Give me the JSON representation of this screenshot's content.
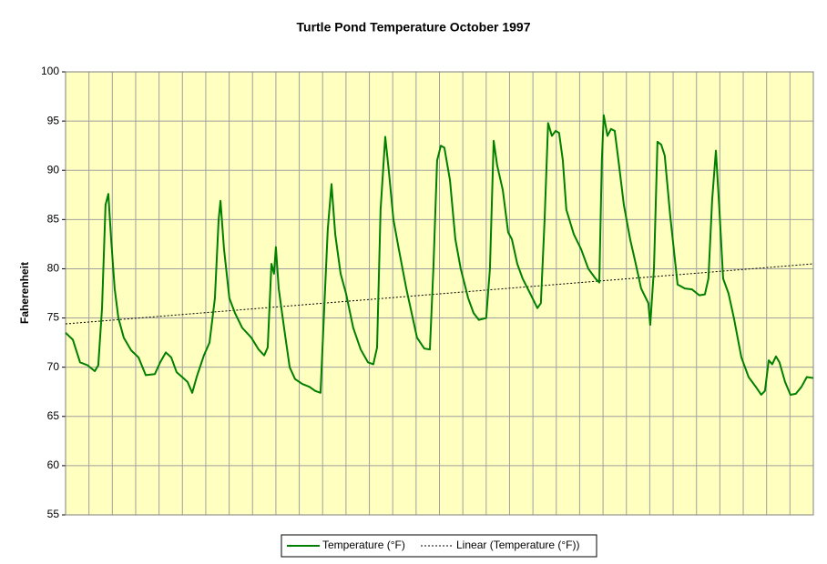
{
  "chart_data": {
    "type": "line",
    "title": "Turtle Pond Temperature October 1997",
    "y_label": "Faherenheit",
    "x": [
      0,
      0.31,
      0.62,
      0.94,
      1.25,
      1.4,
      1.56,
      1.71,
      1.83,
      1.95,
      2.1,
      2.26,
      2.49,
      2.81,
      3.12,
      3.43,
      3.82,
      4.05,
      4.29,
      4.52,
      4.75,
      4.99,
      5.22,
      5.42,
      5.61,
      5.92,
      6.16,
      6.39,
      6.55,
      6.63,
      6.78,
      7.01,
      7.25,
      7.56,
      7.95,
      8.26,
      8.5,
      8.65,
      8.81,
      8.92,
      9.0,
      9.12,
      9.35,
      9.59,
      9.82,
      10.13,
      10.44,
      10.68,
      10.91,
      11.07,
      11.22,
      11.38,
      11.54,
      11.77,
      12.0,
      12.31,
      12.63,
      12.94,
      13.17,
      13.33,
      13.48,
      13.68,
      13.83,
      14.03,
      14.26,
      14.58,
      14.81,
      15.04,
      15.35,
      15.59,
      15.74,
      15.9,
      16.06,
      16.21,
      16.45,
      16.68,
      16.91,
      17.23,
      17.46,
      17.69,
      18.0,
      18.16,
      18.32,
      18.47,
      18.71,
      18.94,
      19.1,
      19.33,
      19.56,
      19.88,
      20.19,
      20.34,
      20.5,
      20.65,
      20.81,
      20.97,
      21.12,
      21.28,
      21.43,
      21.75,
      22.06,
      22.37,
      22.68,
      22.84,
      22.95,
      23.03,
      23.19,
      23.34,
      23.5,
      23.66,
      23.89,
      24.16,
      24.4,
      24.63,
      24.94,
      25.02,
      25.18,
      25.33,
      25.49,
      25.64,
      25.87,
      26.19,
      26.5,
      26.81,
      27.12,
      27.36,
      27.51,
      27.67,
      27.83,
      27.98,
      28.14,
      28.37,
      28.6,
      28.92,
      29.23,
      29.54,
      29.77,
      29.93,
      30.09,
      30.24,
      30.4,
      30.55,
      30.79,
      31.02,
      31.25,
      31.49,
      31.72,
      32.0
    ],
    "series": [
      {
        "name": "Temperature  (°F)",
        "color": "#007f00",
        "values": [
          73.5,
          72.8,
          70.5,
          70.2,
          69.6,
          70.2,
          76,
          86.5,
          87.6,
          83,
          78,
          75,
          73,
          71.7,
          71,
          69.2,
          69.3,
          70.5,
          71.5,
          71,
          69.5,
          69,
          68.5,
          67.4,
          69,
          71.2,
          72.5,
          77,
          85,
          86.9,
          82,
          77,
          75.5,
          74,
          73,
          71.8,
          71.2,
          72,
          80.5,
          79.5,
          82.2,
          78,
          74,
          70,
          68.8,
          68.3,
          68,
          67.6,
          67.4,
          76,
          84,
          88.6,
          83.5,
          79.5,
          77.5,
          74,
          71.8,
          70.5,
          70.3,
          72,
          86,
          93.4,
          90,
          85,
          82,
          78,
          75.5,
          73,
          71.9,
          71.8,
          80,
          91,
          92.5,
          92.3,
          89,
          83,
          80,
          77,
          75.5,
          74.8,
          75,
          80,
          93,
          90.5,
          88,
          83.7,
          83,
          80.5,
          79,
          77.5,
          76,
          76.5,
          85,
          94.8,
          93.5,
          94,
          93.8,
          91,
          86,
          83.5,
          82,
          80,
          79,
          78.6,
          91,
          95.6,
          93.5,
          94.2,
          94,
          91,
          86.5,
          83,
          80.5,
          78,
          76.5,
          74.3,
          80,
          92.9,
          92.6,
          91.5,
          85.5,
          78.4,
          78,
          77.9,
          77.3,
          77.4,
          79,
          87,
          92,
          86,
          79,
          77.5,
          75,
          71,
          69,
          68,
          67.2,
          67.6,
          70.7,
          70.3,
          71.1,
          70.5,
          68.5,
          67.2,
          67.3,
          68,
          69,
          68.9
        ]
      }
    ],
    "trendline": {
      "name": "Linear (Temperature  (°F))",
      "color": "#000000",
      "x": [
        0,
        32
      ],
      "values": [
        74.4,
        80.5
      ]
    },
    "xlim": [
      0,
      32
    ],
    "x_grid_step": 1,
    "ylim": [
      55,
      100
    ],
    "yticks": [
      55,
      60,
      65,
      70,
      75,
      80,
      85,
      90,
      95,
      100
    ],
    "grid": true,
    "legend": "bottom"
  }
}
